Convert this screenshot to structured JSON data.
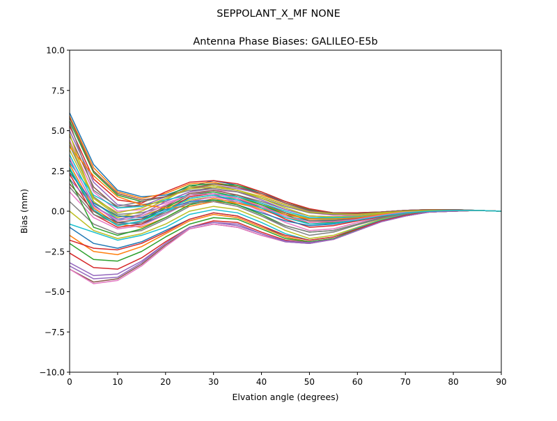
{
  "figure": {
    "suptitle": "SEPPOLANT_X_MF  NONE"
  },
  "chart_data": {
    "type": "line",
    "title": "Antenna Phase Biases: GALILEO-E5b",
    "xlabel": "Elvation angle (degrees)",
    "ylabel": "Bias (mm)",
    "xlim": [
      0,
      90
    ],
    "ylim": [
      -10,
      10
    ],
    "xticks": [
      0,
      10,
      20,
      30,
      40,
      50,
      60,
      70,
      80,
      90
    ],
    "yticks": [
      -10.0,
      -7.5,
      -5.0,
      -2.5,
      0.0,
      2.5,
      5.0,
      7.5,
      10.0
    ],
    "xtick_labels": [
      "0",
      "10",
      "20",
      "30",
      "40",
      "50",
      "60",
      "70",
      "80",
      "90"
    ],
    "ytick_labels": [
      "−10.0",
      "−7.5",
      "−5.0",
      "−2.5",
      "0.0",
      "2.5",
      "5.0",
      "7.5",
      "10.0"
    ],
    "grid": false,
    "legend": "none",
    "x": [
      0,
      5,
      10,
      15,
      20,
      25,
      30,
      35,
      40,
      45,
      50,
      55,
      60,
      65,
      70,
      75,
      80,
      85,
      90
    ],
    "palette": [
      "#1f77b4",
      "#ff7f0e",
      "#2ca02c",
      "#d62728",
      "#9467bd",
      "#8c564b",
      "#e377c2",
      "#7f7f7f",
      "#bcbd22",
      "#17becf"
    ],
    "series": [
      {
        "values": [
          6.1,
          2.9,
          1.3,
          0.9,
          1.0,
          1.5,
          1.9,
          1.6,
          1.1,
          0.6,
          0.1,
          -0.1,
          -0.15,
          -0.05,
          0.05,
          0.1,
          0.1,
          0.05,
          0.0
        ]
      },
      {
        "values": [
          5.9,
          2.7,
          1.2,
          0.8,
          1.1,
          1.7,
          1.8,
          1.5,
          1.0,
          0.5,
          0.05,
          -0.1,
          -0.15,
          -0.05,
          0.05,
          0.1,
          0.1,
          0.05,
          0.0
        ]
      },
      {
        "values": [
          5.6,
          2.4,
          1.0,
          0.6,
          0.9,
          1.6,
          1.7,
          1.6,
          1.2,
          0.6,
          0.1,
          -0.1,
          -0.1,
          -0.05,
          0.05,
          0.1,
          0.1,
          0.05,
          0.0
        ]
      },
      {
        "values": [
          5.3,
          2.0,
          0.7,
          0.5,
          1.2,
          1.8,
          1.9,
          1.7,
          1.2,
          0.6,
          0.15,
          -0.1,
          -0.1,
          -0.05,
          0.05,
          0.1,
          0.1,
          0.05,
          0.0
        ]
      },
      {
        "values": [
          5.0,
          1.8,
          0.4,
          0.3,
          0.9,
          1.4,
          1.6,
          1.4,
          1.1,
          0.5,
          0.0,
          -0.15,
          -0.15,
          -0.05,
          0.05,
          0.1,
          0.1,
          0.05,
          0.0
        ]
      },
      {
        "values": [
          4.7,
          1.5,
          0.2,
          0.4,
          0.6,
          1.2,
          1.5,
          1.3,
          0.9,
          0.4,
          -0.05,
          -0.2,
          -0.2,
          -0.1,
          0.0,
          0.05,
          0.05,
          0.05,
          0.0
        ]
      },
      {
        "values": [
          4.4,
          1.2,
          0.0,
          0.1,
          0.5,
          1.0,
          1.3,
          1.2,
          0.8,
          0.3,
          -0.1,
          -0.25,
          -0.25,
          -0.1,
          0.0,
          0.05,
          0.05,
          0.05,
          0.0
        ]
      },
      {
        "values": [
          4.1,
          0.9,
          -0.2,
          -0.1,
          0.3,
          0.8,
          1.0,
          1.0,
          0.6,
          0.1,
          -0.3,
          -0.35,
          -0.3,
          -0.15,
          0.0,
          0.05,
          0.05,
          0.05,
          0.0
        ]
      },
      {
        "values": [
          3.8,
          0.8,
          -0.3,
          -0.3,
          0.2,
          0.7,
          0.9,
          0.8,
          0.4,
          -0.1,
          -0.45,
          -0.45,
          -0.35,
          -0.2,
          -0.05,
          0.05,
          0.05,
          0.05,
          0.0
        ]
      },
      {
        "values": [
          3.5,
          0.6,
          -0.5,
          -0.5,
          0.0,
          0.5,
          0.7,
          0.6,
          0.2,
          -0.3,
          -0.6,
          -0.55,
          -0.4,
          -0.25,
          -0.05,
          0.0,
          0.05,
          0.05,
          0.0
        ]
      },
      {
        "values": [
          3.2,
          0.4,
          -0.7,
          -0.8,
          -0.2,
          0.6,
          0.9,
          0.7,
          0.3,
          -0.2,
          -0.5,
          -0.5,
          -0.4,
          -0.2,
          -0.05,
          0.0,
          0.05,
          0.05,
          0.0
        ]
      },
      {
        "values": [
          2.9,
          0.2,
          -0.8,
          -1.0,
          -0.4,
          0.4,
          0.8,
          0.5,
          0.1,
          -0.4,
          -0.7,
          -0.65,
          -0.5,
          -0.3,
          -0.1,
          0.0,
          0.05,
          0.05,
          0.0
        ]
      },
      {
        "values": [
          2.6,
          0.0,
          -0.9,
          -0.6,
          0.2,
          1.0,
          1.2,
          0.9,
          0.4,
          -0.2,
          -0.8,
          -0.7,
          -0.5,
          -0.3,
          -0.1,
          0.0,
          0.05,
          0.05,
          0.0
        ]
      },
      {
        "values": [
          2.3,
          -0.2,
          -1.0,
          -0.8,
          0.0,
          0.9,
          1.1,
          0.8,
          0.2,
          -0.5,
          -1.0,
          -0.9,
          -0.6,
          -0.35,
          -0.1,
          0.0,
          0.05,
          0.05,
          0.0
        ]
      },
      {
        "values": [
          2.0,
          0.3,
          -0.5,
          -0.2,
          0.6,
          1.2,
          1.4,
          1.2,
          0.7,
          0.1,
          -0.3,
          -0.35,
          -0.3,
          -0.15,
          0.0,
          0.05,
          0.05,
          0.05,
          0.0
        ]
      },
      {
        "values": [
          1.7,
          0.0,
          -0.7,
          -0.5,
          0.3,
          1.1,
          1.3,
          1.0,
          0.5,
          -0.1,
          -0.6,
          -0.6,
          -0.45,
          -0.25,
          -0.05,
          0.0,
          0.05,
          0.05,
          0.0
        ]
      },
      {
        "values": [
          1.2,
          -0.4,
          -1.1,
          -0.9,
          -0.2,
          0.6,
          0.9,
          0.6,
          0.0,
          -0.7,
          -1.2,
          -1.1,
          -0.7,
          -0.4,
          -0.15,
          0.0,
          0.05,
          0.05,
          0.0
        ]
      },
      {
        "values": [
          0.6,
          -0.8,
          -1.4,
          -1.2,
          -0.5,
          0.3,
          0.6,
          0.3,
          -0.3,
          -1.0,
          -1.5,
          -1.3,
          -0.85,
          -0.45,
          -0.15,
          0.0,
          0.05,
          0.05,
          0.0
        ]
      },
      {
        "values": [
          0.0,
          -1.2,
          -1.7,
          -1.4,
          -0.8,
          0.0,
          0.3,
          0.1,
          -0.5,
          -1.2,
          -1.7,
          -1.5,
          -1.0,
          -0.5,
          -0.2,
          0.0,
          0.05,
          0.05,
          0.0
        ]
      },
      {
        "values": [
          -0.8,
          -1.3,
          -1.8,
          -1.5,
          -1.0,
          -0.2,
          0.1,
          -0.1,
          -0.7,
          -1.4,
          -1.8,
          -1.6,
          -1.05,
          -0.55,
          -0.2,
          -0.05,
          0.0,
          0.05,
          0.0
        ]
      },
      {
        "values": [
          -1.0,
          -2.0,
          -2.3,
          -1.9,
          -1.2,
          -0.5,
          -0.1,
          -0.3,
          -0.9,
          -1.6,
          -1.9,
          -1.7,
          -1.1,
          -0.6,
          -0.25,
          -0.05,
          0.0,
          0.05,
          0.0
        ]
      },
      {
        "values": [
          -1.5,
          -2.5,
          -2.7,
          -2.2,
          -1.4,
          -0.6,
          -0.2,
          -0.4,
          -1.0,
          -1.6,
          -1.9,
          -1.7,
          -1.15,
          -0.6,
          -0.25,
          -0.05,
          0.0,
          0.05,
          0.0
        ]
      },
      {
        "values": [
          -2.0,
          -3.0,
          -3.1,
          -2.5,
          -1.6,
          -0.8,
          -0.4,
          -0.5,
          -1.1,
          -1.7,
          -1.9,
          -1.7,
          -1.15,
          -0.6,
          -0.25,
          -0.05,
          0.0,
          0.05,
          0.0
        ]
      },
      {
        "values": [
          -2.6,
          -3.5,
          -3.6,
          -2.9,
          -1.9,
          -1.0,
          -0.6,
          -0.7,
          -1.3,
          -1.8,
          -1.95,
          -1.75,
          -1.2,
          -0.65,
          -0.3,
          -0.05,
          0.0,
          0.05,
          0.0
        ]
      },
      {
        "values": [
          -3.2,
          -4.0,
          -3.9,
          -3.1,
          -2.0,
          -1.0,
          -0.7,
          -0.8,
          -1.4,
          -1.85,
          -1.95,
          -1.75,
          -1.2,
          -0.65,
          -0.3,
          -0.05,
          0.0,
          0.05,
          0.0
        ]
      },
      {
        "values": [
          -3.6,
          -4.4,
          -4.2,
          -3.3,
          -2.1,
          -1.1,
          -0.8,
          -1.0,
          -1.5,
          -1.9,
          -2.0,
          -1.75,
          -1.2,
          -0.65,
          -0.3,
          -0.05,
          0.0,
          0.05,
          0.0
        ]
      },
      {
        "values": [
          -3.6,
          -4.5,
          -4.3,
          -3.4,
          -2.2,
          -1.1,
          -0.8,
          -1.0,
          -1.5,
          -1.9,
          -2.0,
          -1.75,
          -1.2,
          -0.65,
          -0.3,
          -0.05,
          0.0,
          0.05,
          0.0
        ]
      },
      {
        "values": [
          5.5,
          1.3,
          0.3,
          0.6,
          0.9,
          1.3,
          1.4,
          1.2,
          0.8,
          0.3,
          -0.1,
          -0.2,
          -0.2,
          -0.1,
          0.0,
          0.05,
          0.05,
          0.05,
          0.0
        ]
      },
      {
        "values": [
          4.8,
          0.6,
          -0.4,
          0.0,
          0.7,
          1.5,
          1.6,
          1.3,
          0.8,
          0.2,
          -0.3,
          -0.35,
          -0.3,
          -0.15,
          0.0,
          0.05,
          0.05,
          0.05,
          0.0
        ]
      },
      {
        "values": [
          3.0,
          1.0,
          0.2,
          0.3,
          0.7,
          1.0,
          1.1,
          0.9,
          0.5,
          0.0,
          -0.4,
          -0.4,
          -0.35,
          -0.2,
          -0.05,
          0.05,
          0.05,
          0.05,
          0.0
        ]
      },
      {
        "values": [
          2.4,
          0.5,
          -0.3,
          -0.4,
          0.1,
          0.6,
          0.7,
          0.4,
          -0.1,
          -0.6,
          -0.9,
          -0.8,
          -0.55,
          -0.3,
          -0.1,
          0.0,
          0.05,
          0.05,
          0.0
        ]
      },
      {
        "values": [
          4.0,
          2.2,
          0.9,
          0.4,
          0.2,
          0.3,
          0.6,
          0.5,
          0.2,
          -0.2,
          -0.5,
          -0.5,
          -0.4,
          -0.2,
          -0.05,
          0.05,
          0.05,
          0.05,
          0.0
        ]
      },
      {
        "values": [
          2.0,
          -1.0,
          -1.5,
          -1.1,
          -0.4,
          0.4,
          0.7,
          0.4,
          -0.2,
          -0.9,
          -1.3,
          -1.2,
          -0.8,
          -0.4,
          -0.15,
          0.0,
          0.05,
          0.05,
          0.0
        ]
      },
      {
        "values": [
          -1.8,
          -2.3,
          -2.4,
          -2.0,
          -1.3,
          -0.5,
          -0.1,
          -0.3,
          -0.9,
          -1.5,
          -1.8,
          -1.6,
          -1.1,
          -0.6,
          -0.25,
          -0.05,
          0.0,
          0.05,
          0.0
        ]
      },
      {
        "values": [
          -3.4,
          -4.2,
          -4.1,
          -3.2,
          -2.0,
          -1.0,
          -0.7,
          -0.9,
          -1.4,
          -1.9,
          -2.0,
          -1.75,
          -1.2,
          -0.65,
          -0.3,
          -0.05,
          0.0,
          0.05,
          0.0
        ]
      },
      {
        "values": [
          5.8,
          2.5,
          1.1,
          0.7,
          0.9,
          1.4,
          1.7,
          1.5,
          1.1,
          0.5,
          0.05,
          -0.1,
          -0.15,
          -0.05,
          0.05,
          0.1,
          0.1,
          0.05,
          0.0
        ]
      },
      {
        "values": [
          3.3,
          0.3,
          -0.6,
          -0.3,
          0.4,
          1.0,
          1.1,
          0.8,
          0.3,
          -0.3,
          -0.7,
          -0.65,
          -0.5,
          -0.25,
          -0.05,
          0.0,
          0.05,
          0.05,
          0.0
        ]
      },
      {
        "values": [
          1.5,
          -0.2,
          -0.8,
          -0.7,
          -0.1,
          0.5,
          0.6,
          0.3,
          -0.3,
          -0.9,
          -1.3,
          -1.2,
          -0.8,
          -0.4,
          -0.15,
          0.0,
          0.05,
          0.05,
          0.0
        ]
      },
      {
        "values": [
          4.3,
          0.8,
          -0.1,
          0.2,
          0.8,
          1.4,
          1.5,
          1.3,
          0.9,
          0.4,
          -0.05,
          -0.15,
          -0.2,
          -0.1,
          0.0,
          0.05,
          0.05,
          0.05,
          0.0
        ]
      },
      {
        "values": [
          2.7,
          0.1,
          -0.9,
          -0.6,
          0.0,
          0.8,
          1.0,
          0.7,
          0.2,
          -0.4,
          -0.8,
          -0.75,
          -0.55,
          -0.3,
          -0.1,
          0.0,
          0.05,
          0.05,
          0.0
        ]
      }
    ]
  }
}
